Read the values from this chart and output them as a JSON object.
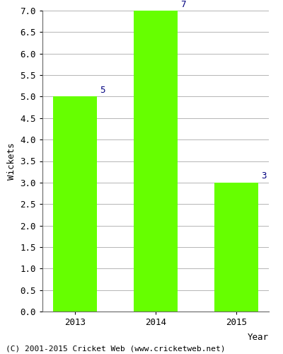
{
  "years": [
    "2013",
    "2014",
    "2015"
  ],
  "values": [
    5,
    7,
    3
  ],
  "bar_color": "#66ff00",
  "bar_edgecolor": "#66ff00",
  "xlabel": "Year",
  "ylabel": "Wickets",
  "ylim": [
    0,
    7.0
  ],
  "yticks": [
    0.0,
    0.5,
    1.0,
    1.5,
    2.0,
    2.5,
    3.0,
    3.5,
    4.0,
    4.5,
    5.0,
    5.5,
    6.0,
    6.5,
    7.0
  ],
  "annotation_color": "#000080",
  "annotation_fontsize": 9,
  "footer_text": "(C) 2001-2015 Cricket Web (www.cricketweb.net)",
  "footer_fontsize": 8,
  "background_color": "#ffffff",
  "grid_color": "#aaaaaa",
  "tick_fontsize": 9,
  "ylabel_fontsize": 9
}
